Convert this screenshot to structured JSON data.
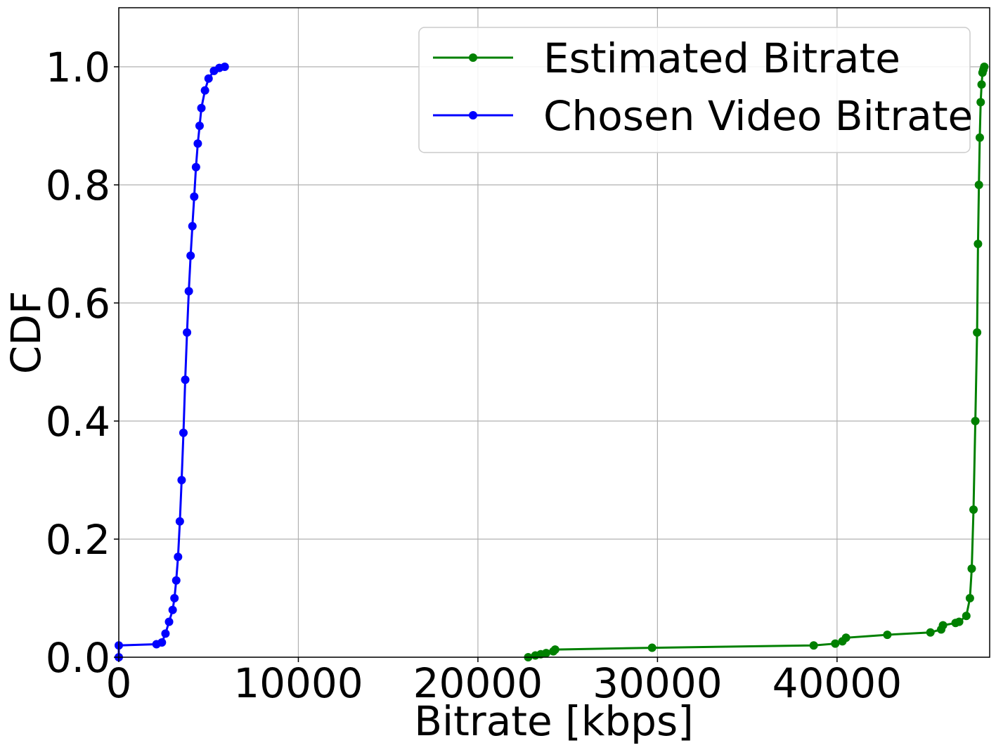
{
  "chart_data": {
    "type": "line",
    "xlabel": "Bitrate [kbps]",
    "ylabel": "CDF",
    "xlim": [
      0,
      48500
    ],
    "ylim": [
      0,
      1.1
    ],
    "xticks": [
      0,
      10000,
      20000,
      30000,
      40000
    ],
    "xtick_labels": [
      "0",
      "10000",
      "20000",
      "30000",
      "40000"
    ],
    "yticks": [
      0.0,
      0.2,
      0.4,
      0.6,
      0.8,
      1.0
    ],
    "ytick_labels": [
      "0.0",
      "0.2",
      "0.4",
      "0.6",
      "0.8",
      "1.0"
    ],
    "grid": true,
    "legend_position": "top-right",
    "series": [
      {
        "name": "Estimated Bitrate",
        "color": "#008000",
        "marker": "circle",
        "x": [
          22800,
          23200,
          23500,
          23800,
          24200,
          24300,
          29700,
          38700,
          39900,
          40300,
          40500,
          42800,
          45200,
          45800,
          45900,
          46600,
          46800,
          47200,
          47400,
          47500,
          47600,
          47700,
          47800,
          47850,
          47900,
          47950,
          48000,
          48050,
          48100,
          48150,
          48200
        ],
        "y": [
          0.0,
          0.003,
          0.005,
          0.007,
          0.01,
          0.013,
          0.016,
          0.02,
          0.023,
          0.027,
          0.033,
          0.038,
          0.042,
          0.047,
          0.054,
          0.058,
          0.06,
          0.07,
          0.1,
          0.15,
          0.25,
          0.4,
          0.55,
          0.7,
          0.8,
          0.88,
          0.94,
          0.97,
          0.99,
          0.995,
          1.0
        ]
      },
      {
        "name": "Chosen Video Bitrate",
        "color": "#0000ff",
        "marker": "circle",
        "x": [
          0,
          0,
          2100,
          2400,
          2600,
          2800,
          3000,
          3100,
          3200,
          3300,
          3400,
          3500,
          3600,
          3700,
          3800,
          3900,
          4000,
          4100,
          4200,
          4300,
          4400,
          4500,
          4600,
          4800,
          5000,
          5300,
          5600,
          5900
        ],
        "y": [
          0.0,
          0.02,
          0.022,
          0.025,
          0.04,
          0.06,
          0.08,
          0.1,
          0.13,
          0.17,
          0.23,
          0.3,
          0.38,
          0.47,
          0.55,
          0.62,
          0.68,
          0.73,
          0.78,
          0.83,
          0.87,
          0.9,
          0.93,
          0.96,
          0.98,
          0.993,
          0.998,
          1.0
        ]
      }
    ]
  }
}
